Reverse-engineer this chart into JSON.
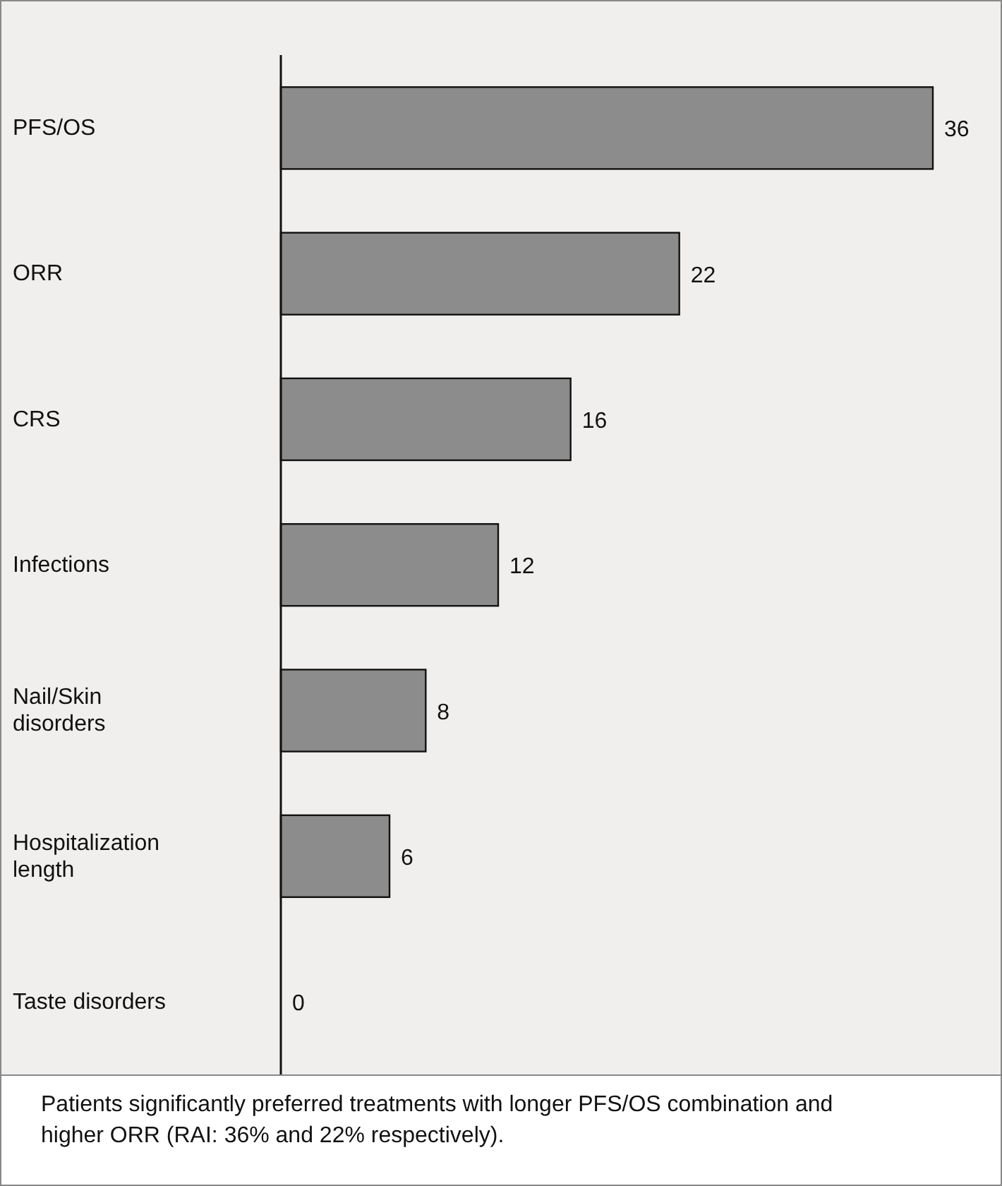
{
  "chart_data": {
    "type": "bar",
    "orientation": "horizontal",
    "categories": [
      "PFS/OS",
      "ORR",
      "CRS",
      "Infections",
      "Nail/Skin disorders",
      "Hospitalization length",
      "Taste disorders"
    ],
    "values": [
      36,
      22,
      16,
      12,
      8,
      6,
      0
    ],
    "color": "#8c8c8c",
    "data_labels": true,
    "grid": false,
    "legend": false,
    "tick_labels": "y",
    "annotations": [
      "Patients significantly preferred treatments with longer PFS/OS combination and higher ORR (RAI: 36% and 22% respectively)."
    ]
  }
}
